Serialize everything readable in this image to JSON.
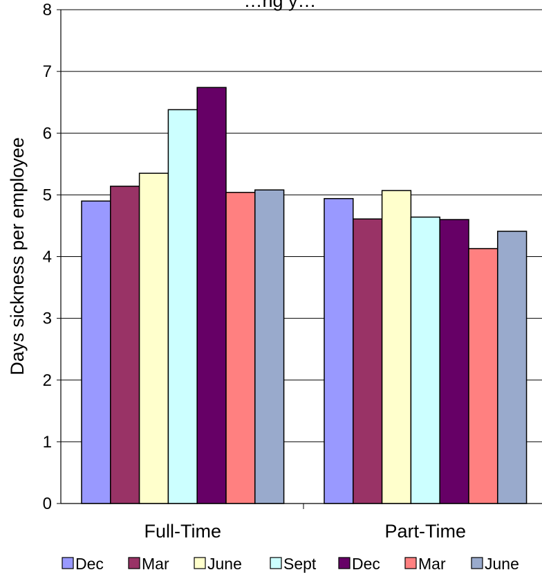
{
  "chart_data": {
    "type": "bar",
    "title": "…ng y…",
    "ylabel": "Days sickness per employee",
    "xlabel": "",
    "ylim": [
      0,
      8
    ],
    "yticks": [
      0,
      1,
      2,
      3,
      4,
      5,
      6,
      7,
      8
    ],
    "categories": [
      "Full-Time",
      "Part-Time"
    ],
    "grid": true,
    "legend_position": "bottom",
    "series": [
      {
        "name": "Dec",
        "color": "#9999FF",
        "values": [
          4.9,
          4.94
        ]
      },
      {
        "name": "Mar",
        "color": "#993366",
        "values": [
          5.14,
          4.61
        ]
      },
      {
        "name": "June",
        "color": "#FFFFCC",
        "values": [
          5.35,
          5.07
        ]
      },
      {
        "name": "Sept",
        "color": "#CCFFFF",
        "values": [
          6.38,
          4.64
        ]
      },
      {
        "name": "Dec",
        "color": "#660066",
        "values": [
          6.74,
          4.6
        ]
      },
      {
        "name": "Mar",
        "color": "#FF8080",
        "values": [
          5.04,
          4.13
        ]
      },
      {
        "name": "June",
        "color": "#99AACC",
        "values": [
          5.08,
          4.41
        ]
      }
    ]
  }
}
